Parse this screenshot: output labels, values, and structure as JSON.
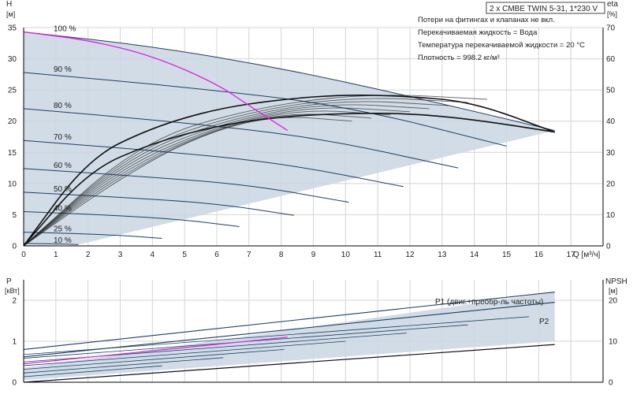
{
  "header": {
    "title": "2 x CMBE TWIN 5-31, 1*230 V"
  },
  "info_lines": [
    "Потери на фитингах и клапанах не вкл.",
    "Перекачиваемая жидкость = Вода",
    "Температура перекачиваемой жидкости = 20 °C",
    "Плотность = 998.2 кг/м³"
  ],
  "colors": {
    "envelope": "#c9d6e2",
    "curve": "#1c3f66",
    "highlight": "#e020e0",
    "grid": "#d4d4d4",
    "axis": "#000000"
  },
  "chart_data": [
    {
      "type": "line",
      "panel": "top",
      "x_unit_label": "Q [м³/ч]",
      "left_axis": {
        "label": "H",
        "unit": "[м]",
        "ylim": [
          0,
          35
        ],
        "ticks": [
          0,
          5,
          10,
          15,
          20,
          25,
          30,
          35
        ]
      },
      "right_axis": {
        "label": "eta",
        "unit": "[%]",
        "ylim": [
          0,
          70
        ],
        "ticks": [
          0,
          10,
          20,
          30,
          40,
          50,
          60,
          70
        ]
      },
      "xlim": [
        0,
        18
      ],
      "x_ticks": [
        0,
        1,
        2,
        3,
        4,
        5,
        6,
        7,
        8,
        9,
        10,
        11,
        12,
        13,
        14,
        15,
        16,
        17
      ],
      "speed_labels": [
        "100 %",
        "90 %",
        "80 %",
        "70 %",
        "60 %",
        "50 %",
        "40 %",
        "25 %",
        "10 %"
      ],
      "speed_curves": [
        {
          "name": "100 %",
          "x": [
            0,
            4,
            8,
            12,
            16.5
          ],
          "y": [
            34.3,
            32.0,
            28.5,
            24.0,
            18.5
          ]
        },
        {
          "name": "90 %",
          "x": [
            0,
            5,
            10,
            15
          ],
          "y": [
            27.8,
            25.5,
            22.5,
            16.0
          ]
        },
        {
          "name": "80 %",
          "x": [
            0,
            4.5,
            9,
            13.5
          ],
          "y": [
            22.0,
            20.0,
            17.5,
            12.5
          ]
        },
        {
          "name": "70 %",
          "x": [
            0,
            4,
            8,
            11.8
          ],
          "y": [
            16.9,
            15.3,
            13.3,
            9.5
          ]
        },
        {
          "name": "60 %",
          "x": [
            0,
            3.5,
            7,
            10.1
          ],
          "y": [
            12.4,
            11.2,
            9.8,
            7.0
          ]
        },
        {
          "name": "50 %",
          "x": [
            0,
            3,
            6,
            8.4
          ],
          "y": [
            8.6,
            7.8,
            6.8,
            4.9
          ]
        },
        {
          "name": "40 %",
          "x": [
            0,
            2.4,
            4.8,
            6.7
          ],
          "y": [
            5.5,
            5.0,
            4.3,
            3.1
          ]
        },
        {
          "name": "25 %",
          "x": [
            0,
            1.5,
            3,
            4.3
          ],
          "y": [
            2.2,
            2.0,
            1.7,
            1.2
          ]
        },
        {
          "name": "10 %",
          "x": [
            0,
            0.6,
            1.2,
            1.7
          ],
          "y": [
            0.4,
            0.35,
            0.3,
            0.2
          ]
        }
      ],
      "highlight_curve": {
        "x": [
          0,
          2,
          4,
          6,
          7,
          8.2
        ],
        "y": [
          34.3,
          33.0,
          30.5,
          26.0,
          22.5,
          18.5
        ]
      },
      "efficiency_curves": [
        {
          "x": [
            0,
            2,
            4,
            6,
            8,
            10,
            12,
            14,
            16.5
          ],
          "eta": [
            0,
            28,
            38,
            44,
            47,
            48.5,
            48,
            46,
            36.5
          ]
        },
        {
          "x": [
            0,
            2,
            4,
            6,
            8,
            10,
            12,
            14,
            16.5
          ],
          "eta": [
            0,
            24,
            33,
            38.5,
            41.5,
            42.5,
            42.5,
            40.5,
            36.5
          ]
        }
      ]
    },
    {
      "type": "line",
      "panel": "bottom",
      "left_axis": {
        "label": "P",
        "unit": "[кВт]",
        "ylim": [
          0,
          2.5
        ],
        "ticks": [
          0,
          1,
          2
        ]
      },
      "right_axis": {
        "label": "NPSH",
        "unit": "[м]",
        "ylim": [
          0,
          25
        ],
        "ticks": [
          0,
          10,
          20
        ]
      },
      "xlim": [
        0,
        18
      ],
      "annotations": [
        "P1 (двиг.+преобр-ль частоты)",
        "P2"
      ],
      "series": [
        {
          "name": "P1 (двиг.+преобр-ль частоты)",
          "x": [
            0,
            16.5
          ],
          "y": [
            0.8,
            2.2
          ]
        },
        {
          "name": "P2",
          "x": [
            0,
            16.5
          ],
          "y": [
            0.62,
            1.95
          ]
        }
      ],
      "npsh_curve": {
        "x": [
          0,
          16.5
        ],
        "y": [
          0,
          9.2
        ]
      }
    }
  ]
}
